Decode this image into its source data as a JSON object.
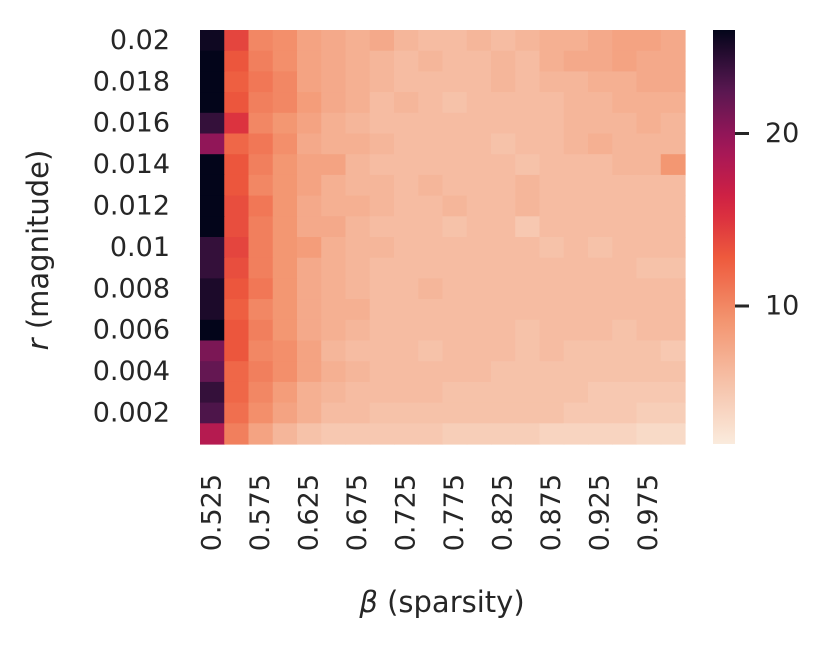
{
  "chart_data": {
    "type": "heatmap",
    "title": "",
    "xlabel": {
      "symbol": "β",
      "text": " (sparsity)"
    },
    "ylabel": {
      "symbol": "r",
      "text": " (magnitude)"
    },
    "x_values": [
      0.525,
      0.55,
      0.575,
      0.6,
      0.625,
      0.65,
      0.675,
      0.7,
      0.725,
      0.75,
      0.775,
      0.8,
      0.825,
      0.85,
      0.875,
      0.9,
      0.925,
      0.95,
      0.975,
      1.0
    ],
    "x_tick_labels": [
      "0.525",
      "0.575",
      "0.625",
      "0.675",
      "0.725",
      "0.775",
      "0.825",
      "0.875",
      "0.925",
      "0.975"
    ],
    "y_values": [
      0.02,
      0.019,
      0.018,
      0.017,
      0.016,
      0.015,
      0.014,
      0.013,
      0.012,
      0.011,
      0.01,
      0.009,
      0.008,
      0.007,
      0.006,
      0.005,
      0.004,
      0.003,
      0.002,
      0.001
    ],
    "y_tick_labels": [
      "0.02",
      "0.018",
      "0.016",
      "0.014",
      "0.012",
      "0.01",
      "0.008",
      "0.006",
      "0.004",
      "0.002"
    ],
    "colormap": "rocket_r",
    "colorbar_range": [
      2,
      26
    ],
    "colorbar_ticks": [
      "10",
      "20"
    ],
    "colorbar_tick_values": [
      10,
      20
    ],
    "values": [
      [
        25.5,
        14,
        10,
        9.5,
        8,
        7.5,
        7,
        7.5,
        6.5,
        6,
        6,
        6.5,
        6,
        6.5,
        7,
        7,
        7.5,
        8,
        8,
        7.5
      ],
      [
        26,
        13,
        10.5,
        9.5,
        8,
        7.5,
        7,
        6.5,
        6,
        6.5,
        6,
        6,
        6.5,
        6,
        7,
        7.5,
        7.5,
        8,
        7.5,
        7.5
      ],
      [
        26,
        12.5,
        11,
        10,
        8,
        7.5,
        7,
        6.5,
        6,
        6,
        6,
        6,
        6.5,
        6,
        6.5,
        6.5,
        7,
        7,
        7.5,
        7.5
      ],
      [
        26,
        13,
        10.5,
        10,
        8.5,
        7.5,
        7,
        6,
        6.5,
        6,
        5.5,
        6,
        6,
        6,
        6,
        6.5,
        6.5,
        7,
        7,
        7
      ],
      [
        24,
        15,
        10,
        9,
        8,
        7,
        6.5,
        6,
        6,
        6,
        6,
        6,
        6,
        6,
        6,
        6.5,
        6.5,
        6.5,
        7,
        6.5
      ],
      [
        20,
        12,
        11,
        9.5,
        7.5,
        7,
        7,
        6.5,
        6,
        6,
        6,
        6,
        5.5,
        6,
        6,
        6.5,
        7,
        6.5,
        6.5,
        6.5
      ],
      [
        26,
        13,
        10.5,
        9,
        8,
        8,
        6.5,
        6,
        6,
        6,
        6,
        6,
        6,
        5.5,
        6,
        6,
        6,
        6.5,
        6.5,
        9
      ],
      [
        26,
        13,
        10,
        9,
        8,
        7,
        6.5,
        6.5,
        6,
        6.5,
        6,
        6,
        6,
        6.5,
        6,
        6,
        6,
        6,
        6,
        6
      ],
      [
        26,
        13.5,
        11,
        9,
        7.5,
        7,
        7,
        6.5,
        6,
        6,
        6.5,
        6,
        6,
        6.5,
        6,
        6,
        6,
        6,
        6,
        6
      ],
      [
        26,
        13.5,
        10.5,
        9,
        7.5,
        7.5,
        6.5,
        6,
        6,
        6,
        5.5,
        6,
        6,
        5,
        6,
        6,
        6,
        6,
        6,
        6
      ],
      [
        24,
        14,
        10.5,
        9,
        8.5,
        7,
        6.5,
        6.5,
        6,
        6,
        6,
        6,
        6,
        6,
        5.5,
        6,
        5.5,
        6,
        6,
        6
      ],
      [
        24,
        13.5,
        10.5,
        9,
        7.5,
        7,
        6.5,
        6,
        6,
        6,
        6,
        6,
        6,
        6,
        6,
        6,
        6,
        6,
        5.5,
        5.5
      ],
      [
        25,
        13,
        11,
        9,
        7.5,
        7,
        6.5,
        6,
        6,
        6.5,
        6,
        6,
        6,
        6,
        6,
        6,
        6,
        6,
        6,
        6
      ],
      [
        25,
        12.5,
        10,
        9,
        7.5,
        7,
        7,
        6,
        6,
        6,
        6,
        6,
        6,
        6,
        6,
        6,
        6,
        6,
        6,
        6
      ],
      [
        26,
        13,
        10.5,
        9,
        7.5,
        7,
        6.5,
        6,
        6,
        6,
        6,
        6,
        6,
        5.5,
        6,
        6,
        6,
        5.5,
        6,
        6
      ],
      [
        21,
        13,
        10,
        9.5,
        8,
        6.5,
        6,
        6,
        6,
        5.5,
        6,
        6,
        6,
        5.5,
        6,
        5.5,
        5.5,
        5.5,
        5.5,
        5
      ],
      [
        22,
        12,
        10.5,
        9.5,
        8,
        7,
        6.5,
        6,
        6,
        6,
        6,
        6,
        5.5,
        5.5,
        5.5,
        5.5,
        5.5,
        5.5,
        5.5,
        5.5
      ],
      [
        24,
        12,
        10,
        8.5,
        7,
        6.5,
        6,
        6,
        6,
        6,
        5.5,
        5.5,
        5.5,
        5.5,
        5.5,
        5.5,
        5,
        5,
        5,
        5
      ],
      [
        23,
        11.5,
        9.5,
        8,
        7,
        6,
        6,
        5.5,
        5.5,
        5.5,
        5.5,
        5.5,
        5.5,
        5.5,
        5.5,
        5,
        5,
        5,
        4.5,
        4.5
      ],
      [
        18,
        10.5,
        8,
        6.5,
        5.5,
        5,
        5,
        5,
        5,
        5,
        4.5,
        4.5,
        4.5,
        4.5,
        4,
        4,
        4,
        4,
        3.5,
        3.5
      ]
    ]
  }
}
